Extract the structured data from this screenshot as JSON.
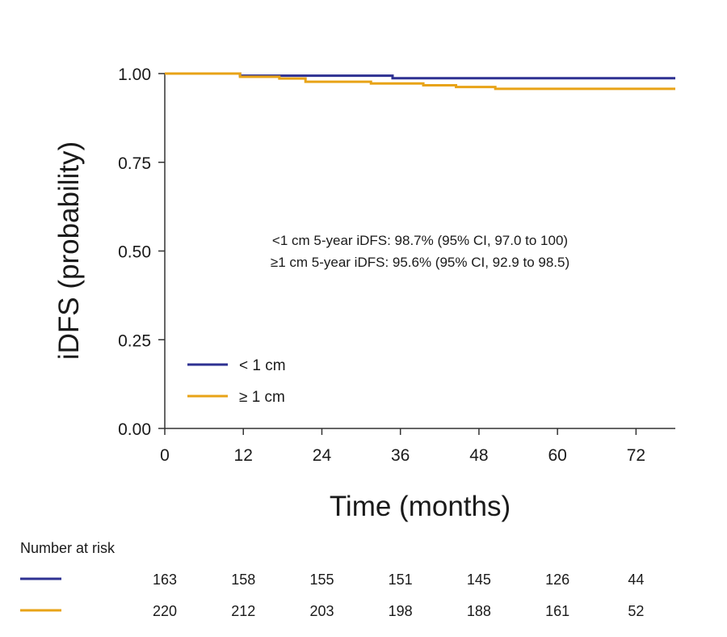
{
  "chart_data": {
    "type": "line",
    "subtype": "kaplan-meier",
    "xlabel": "Time (months)",
    "ylabel": "iDFS (probability)",
    "xlim": [
      0,
      78
    ],
    "ylim": [
      0,
      1
    ],
    "x_ticks": [
      0,
      12,
      24,
      36,
      48,
      60,
      72
    ],
    "x_tick_labels": [
      "0",
      "12",
      "24",
      "36",
      "48",
      "60",
      "72"
    ],
    "y_ticks": [
      0,
      0.25,
      0.5,
      0.75,
      1.0
    ],
    "y_tick_labels": [
      "0.00",
      "0.25",
      "0.50",
      "0.75",
      "1.00"
    ],
    "grid": false,
    "annotations": [
      "<1 cm 5-year iDFS: 98.7% (95% CI, 97.0 to 100)",
      "≥1 cm 5-year iDFS: 95.6% (95% CI, 92.9 to 98.5)"
    ],
    "legend_position": "bottom-left",
    "series": [
      {
        "name": "< 1 cm",
        "color": "#2e3192",
        "steps": [
          [
            0,
            1.0
          ],
          [
            11.5,
            0.994
          ],
          [
            34.8,
            0.987
          ],
          [
            78,
            0.987
          ]
        ]
      },
      {
        "name": "≥ 1 cm",
        "color": "#e8a317",
        "steps": [
          [
            0,
            1.0
          ],
          [
            11.5,
            0.991
          ],
          [
            17.5,
            0.986
          ],
          [
            21.5,
            0.977
          ],
          [
            31.5,
            0.972
          ],
          [
            39.5,
            0.967
          ],
          [
            44.5,
            0.962
          ],
          [
            50.5,
            0.957
          ],
          [
            78,
            0.957
          ]
        ]
      }
    ],
    "risk_table": {
      "title": "Number at risk",
      "times": [
        0,
        12,
        24,
        36,
        48,
        60,
        72
      ],
      "rows": [
        {
          "name": "< 1 cm",
          "color": "#2e3192",
          "values": [
            "163",
            "158",
            "155",
            "151",
            "145",
            "126",
            "44"
          ]
        },
        {
          "name": "≥ 1 cm",
          "color": "#e8a317",
          "values": [
            "220",
            "212",
            "203",
            "198",
            "188",
            "161",
            "52"
          ]
        }
      ]
    }
  }
}
